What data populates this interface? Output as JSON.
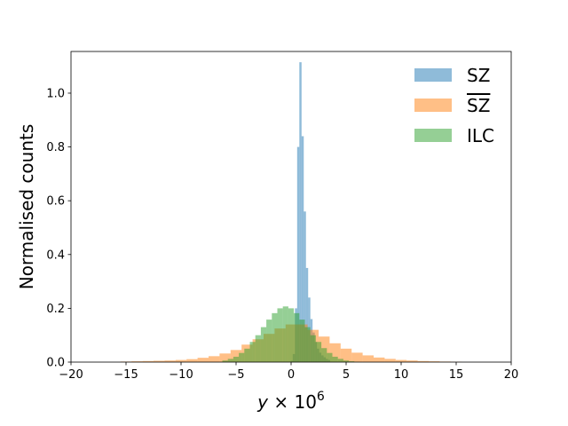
{
  "chart_data": {
    "type": "histogram",
    "title": "",
    "xlabel_parts": {
      "var": "y",
      "times": " × 10",
      "exp": "6"
    },
    "ylabel": "Normalised counts",
    "xlim": [
      -20,
      20
    ],
    "ylim": [
      0,
      1.155
    ],
    "xticks": [
      -20,
      -15,
      -10,
      -5,
      0,
      5,
      10,
      15,
      20
    ],
    "xtick_labels": [
      "−20",
      "−15",
      "−10",
      "−5",
      "0",
      "5",
      "10",
      "15",
      "20"
    ],
    "yticks": [
      0.0,
      0.2,
      0.4,
      0.6,
      0.8,
      1.0
    ],
    "ytick_labels": [
      "0.0",
      "0.2",
      "0.4",
      "0.6",
      "0.8",
      "1.0"
    ],
    "grid": false,
    "legend_position": "top-right",
    "series": [
      {
        "name": "SZ",
        "color": "#1f77b4",
        "alpha": 0.5,
        "x": [
          0.05,
          0.25,
          0.45,
          0.65,
          0.85,
          1.05,
          1.25,
          1.45,
          1.65,
          1.85,
          2.05,
          2.25,
          2.45,
          2.65,
          2.85,
          3.05,
          3.25,
          3.45
        ],
        "values": [
          0.005,
          0.03,
          0.2,
          0.8,
          1.115,
          0.84,
          0.56,
          0.35,
          0.24,
          0.16,
          0.11,
          0.075,
          0.05,
          0.035,
          0.025,
          0.018,
          0.012,
          0.008
        ]
      },
      {
        "name": "SZ",
        "overline": true,
        "color": "#ff7f0e",
        "alpha": 0.5,
        "x": [
          -15,
          -14,
          -13,
          -12,
          -11,
          -10,
          -9,
          -8,
          -7,
          -6,
          -5,
          -4,
          -3,
          -2,
          -1,
          0,
          1,
          2,
          3,
          4,
          5,
          6,
          7,
          8,
          9,
          10,
          11,
          12,
          13,
          14,
          15
        ],
        "values": [
          0.002,
          0.003,
          0.004,
          0.005,
          0.006,
          0.008,
          0.011,
          0.016,
          0.022,
          0.032,
          0.045,
          0.065,
          0.085,
          0.105,
          0.125,
          0.14,
          0.14,
          0.12,
          0.095,
          0.07,
          0.05,
          0.035,
          0.025,
          0.017,
          0.012,
          0.008,
          0.006,
          0.004,
          0.003,
          0.002,
          0.001
        ]
      },
      {
        "name": "ILC",
        "color": "#2ca02c",
        "alpha": 0.5,
        "x": [
          -6,
          -5.5,
          -5,
          -4.5,
          -4,
          -3.5,
          -3,
          -2.5,
          -2,
          -1.5,
          -1,
          -0.5,
          0,
          0.5,
          1,
          1.5,
          2,
          2.5,
          3,
          3.5,
          4,
          4.5,
          5,
          5.5,
          6
        ],
        "values": [
          0.006,
          0.012,
          0.02,
          0.034,
          0.05,
          0.075,
          0.1,
          0.13,
          0.158,
          0.182,
          0.2,
          0.207,
          0.2,
          0.182,
          0.158,
          0.13,
          0.1,
          0.075,
          0.052,
          0.034,
          0.02,
          0.012,
          0.006,
          0.003,
          0.001
        ]
      }
    ]
  }
}
